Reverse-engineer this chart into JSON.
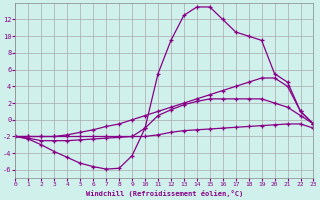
{
  "xlabel": "Windchill (Refroidissement éolien,°C)",
  "background_color": "#cff0eb",
  "grid_color": "#aaaaaa",
  "line_color": "#880088",
  "xlim": [
    0,
    23
  ],
  "ylim": [
    -7,
    14
  ],
  "yticks": [
    -6,
    -4,
    -2,
    0,
    2,
    4,
    6,
    8,
    10,
    12
  ],
  "xticks": [
    0,
    1,
    2,
    3,
    4,
    5,
    6,
    7,
    8,
    9,
    10,
    11,
    12,
    13,
    14,
    15,
    16,
    17,
    18,
    19,
    20,
    21,
    22,
    23
  ],
  "curves": [
    {
      "x": [
        0,
        1,
        2,
        3,
        4,
        5,
        6,
        7,
        8,
        9,
        10,
        11,
        12,
        13,
        14,
        15,
        16,
        17,
        18,
        19,
        20,
        21,
        22,
        23
      ],
      "y": [
        -2,
        -2,
        -2,
        -2,
        -2,
        -2,
        -2,
        -2,
        -2,
        -2,
        -2,
        -1.8,
        -1.5,
        -1.3,
        -1.2,
        -1.1,
        -1.0,
        -0.9,
        -0.8,
        -0.7,
        -0.6,
        -0.5,
        -0.5,
        -1.0
      ]
    },
    {
      "x": [
        0,
        1,
        2,
        3,
        4,
        5,
        6,
        7,
        8,
        9,
        10,
        11,
        12,
        13,
        14,
        15,
        16,
        17,
        18,
        19,
        20,
        21,
        22,
        23
      ],
      "y": [
        -2,
        -2.2,
        -2.5,
        -2.5,
        -2.5,
        -2.4,
        -2.3,
        -2.2,
        -2.1,
        -2.0,
        -1.0,
        5.5,
        9.5,
        12.5,
        13.5,
        13.5,
        12.0,
        10.5,
        10.0,
        9.5,
        5.5,
        4.5,
        1.0,
        -0.5
      ]
    },
    {
      "x": [
        0,
        1,
        2,
        3,
        4,
        5,
        6,
        7,
        8,
        9,
        10,
        11,
        12,
        13,
        14,
        15,
        16,
        17,
        18,
        19,
        20,
        21,
        22,
        23
      ],
      "y": [
        -2,
        -2,
        -2,
        -2,
        -1.8,
        -1.5,
        -1.2,
        -0.8,
        -0.5,
        0.0,
        0.5,
        1.0,
        1.5,
        2.0,
        2.5,
        3.0,
        3.5,
        4.0,
        4.5,
        5.0,
        5.0,
        4.0,
        1.0,
        -0.5
      ]
    },
    {
      "x": [
        0,
        1,
        2,
        3,
        4,
        5,
        6,
        7,
        8,
        9,
        10,
        11,
        12,
        13,
        14,
        15,
        16,
        17,
        18,
        19,
        20,
        21,
        22,
        23
      ],
      "y": [
        -2,
        -2.3,
        -3.0,
        -3.8,
        -4.5,
        -5.2,
        -5.6,
        -5.9,
        -5.8,
        -4.3,
        -1.0,
        0.5,
        1.2,
        1.8,
        2.2,
        2.5,
        2.5,
        2.5,
        2.5,
        2.5,
        2.0,
        1.5,
        0.5,
        -0.5
      ]
    }
  ]
}
